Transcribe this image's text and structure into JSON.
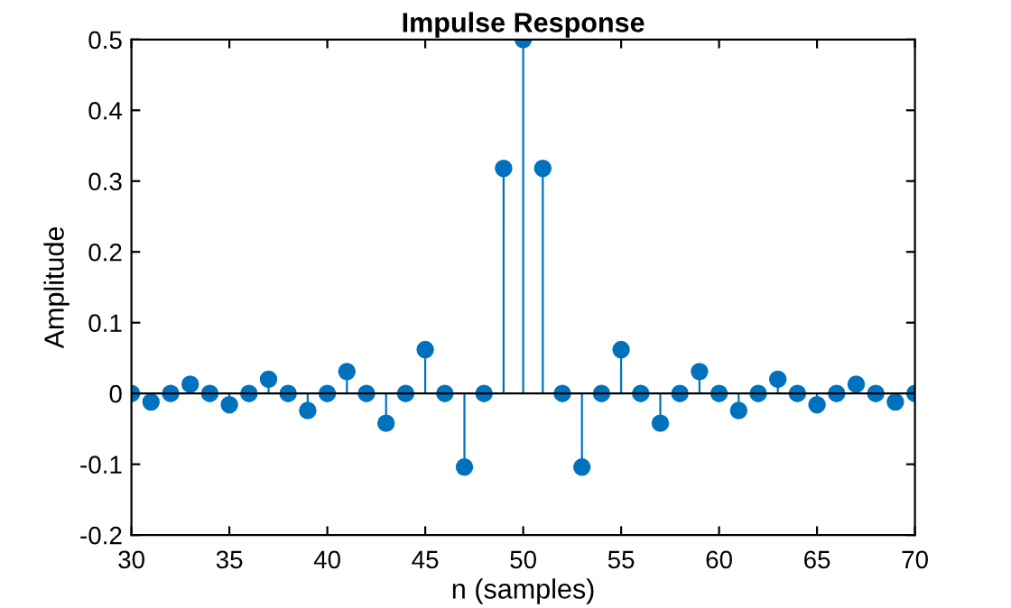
{
  "chart_data": {
    "type": "lollipop",
    "title": "Impulse Response",
    "xlabel": "n (samples)",
    "ylabel": "Amplitude",
    "x": [
      30,
      31,
      32,
      33,
      34,
      35,
      36,
      37,
      38,
      39,
      40,
      41,
      42,
      43,
      44,
      45,
      46,
      47,
      48,
      49,
      50,
      51,
      52,
      53,
      54,
      55,
      56,
      57,
      58,
      59,
      60,
      61,
      62,
      63,
      64,
      65,
      66,
      67,
      68,
      69,
      70
    ],
    "series": [
      {
        "color": "#0072bd",
        "values": [
          0,
          -0.012,
          0,
          0.013,
          0,
          -0.016,
          0,
          0.02,
          0,
          -0.024,
          0,
          0.031,
          0,
          -0.042,
          0,
          0.062,
          0,
          -0.104,
          0,
          0.318,
          0.5,
          0.318,
          0,
          -0.104,
          0,
          0.062,
          0,
          -0.042,
          0,
          0.031,
          0,
          -0.024,
          0,
          0.02,
          0,
          -0.016,
          0,
          0.013,
          0,
          -0.012,
          0
        ]
      }
    ],
    "xlim": [
      30,
      70
    ],
    "xticks": [
      30,
      35,
      40,
      45,
      50,
      55,
      60,
      65,
      70
    ],
    "ylim": [
      -0.2,
      0.5
    ],
    "yticks": [
      -0.2,
      -0.1,
      0,
      0.1,
      0.2,
      0.3,
      0.4,
      0.5
    ],
    "marker": "circle",
    "grid": false
  }
}
